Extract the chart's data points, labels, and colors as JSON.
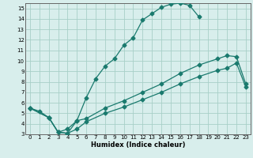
{
  "xlabel": "Humidex (Indice chaleur)",
  "xlim": [
    -0.5,
    23.5
  ],
  "ylim": [
    3,
    15.5
  ],
  "xticks": [
    0,
    1,
    2,
    3,
    4,
    5,
    6,
    7,
    8,
    9,
    10,
    11,
    12,
    13,
    14,
    15,
    16,
    17,
    18,
    19,
    20,
    21,
    22,
    23
  ],
  "yticks": [
    3,
    4,
    5,
    6,
    7,
    8,
    9,
    10,
    11,
    12,
    13,
    14,
    15
  ],
  "bg_color": "#d8eeec",
  "grid_color": "#a8cfc8",
  "line_color": "#1a7a6e",
  "curve1_x": [
    0,
    1,
    2,
    3,
    4,
    5,
    6,
    7,
    8,
    9,
    10,
    11,
    12,
    13,
    14,
    15,
    16,
    17,
    18
  ],
  "curve1_y": [
    5.5,
    5.2,
    4.6,
    3.2,
    3.1,
    4.3,
    6.5,
    8.3,
    9.5,
    10.2,
    11.5,
    12.2,
    13.9,
    14.5,
    15.1,
    15.4,
    15.5,
    15.3,
    14.2
  ],
  "curve2_x": [
    0,
    2,
    3,
    4,
    5,
    6,
    8,
    10,
    12,
    14,
    16,
    18,
    20,
    21,
    22,
    23
  ],
  "curve2_y": [
    5.5,
    4.6,
    3.2,
    3.5,
    4.3,
    4.5,
    5.5,
    6.2,
    7.0,
    7.8,
    8.8,
    9.6,
    10.2,
    10.5,
    10.4,
    7.8
  ],
  "curve3_x": [
    0,
    2,
    3,
    4,
    5,
    6,
    8,
    10,
    12,
    14,
    16,
    18,
    20,
    21,
    22,
    23
  ],
  "curve3_y": [
    5.5,
    4.6,
    3.2,
    3.1,
    3.5,
    4.2,
    5.0,
    5.6,
    6.3,
    7.0,
    7.8,
    8.5,
    9.1,
    9.3,
    9.8,
    7.5
  ],
  "marker": "D",
  "markersize": 2.5,
  "linewidth": 0.9,
  "tick_fontsize": 5.0,
  "xlabel_fontsize": 6.0
}
